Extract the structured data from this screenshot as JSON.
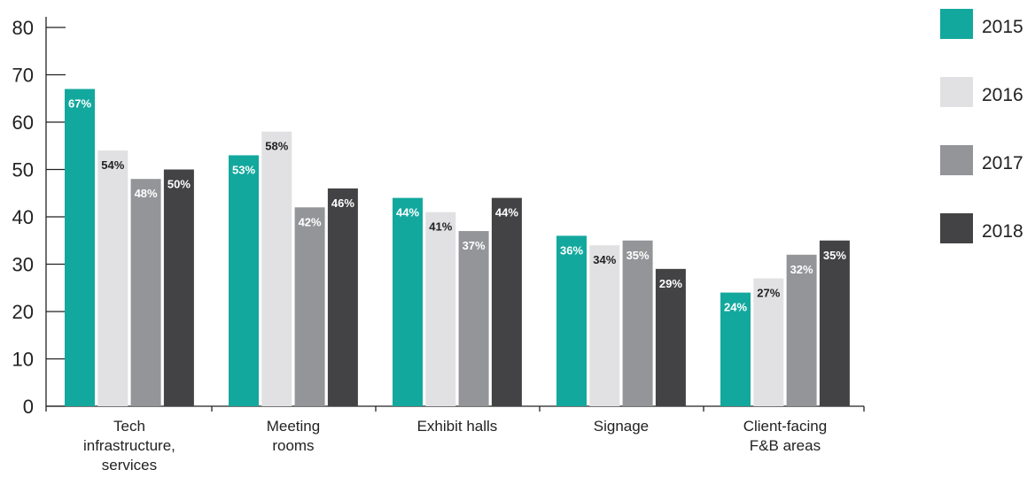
{
  "chart_data": {
    "type": "bar",
    "title": "",
    "xlabel": "",
    "ylabel": "",
    "ylim": [
      0,
      80
    ],
    "yticks": [
      0,
      10,
      20,
      30,
      40,
      50,
      60,
      70,
      80
    ],
    "grid": false,
    "legend_position": "right",
    "categories": [
      [
        "Tech",
        "infrastructure,",
        "services"
      ],
      [
        "Meeting",
        "rooms"
      ],
      [
        "Exhibit halls"
      ],
      [
        "Signage"
      ],
      [
        "Client-facing",
        "F&B areas"
      ]
    ],
    "series": [
      {
        "name": "2015",
        "color": "#13a89e",
        "label_color": "#ffffff",
        "values": [
          67,
          53,
          44,
          36,
          24
        ],
        "labels": [
          "67%",
          "53%",
          "44%",
          "36%",
          "24%"
        ]
      },
      {
        "name": "2016",
        "color": "#e1e1e3",
        "label_color": "#222222",
        "values": [
          54,
          58,
          41,
          34,
          27
        ],
        "labels": [
          "54%",
          "58%",
          "41%",
          "34%",
          "27%"
        ]
      },
      {
        "name": "2017",
        "color": "#939598",
        "label_color": "#ffffff",
        "values": [
          48,
          42,
          37,
          35,
          32
        ],
        "labels": [
          "48%",
          "42%",
          "37%",
          "35%",
          "32%"
        ]
      },
      {
        "name": "2018",
        "color": "#434345",
        "label_color": "#ffffff",
        "values": [
          50,
          46,
          44,
          29,
          35
        ],
        "labels": [
          "50%",
          "46%",
          "44%",
          "29%",
          "35%"
        ]
      }
    ]
  }
}
